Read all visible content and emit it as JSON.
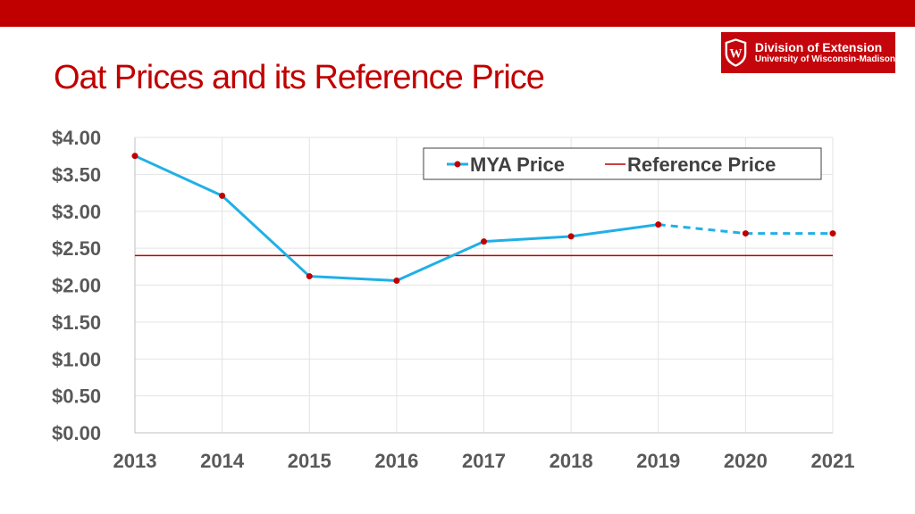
{
  "slide": {
    "title": "Oat Prices and its Reference Price",
    "accent_color": "#c00000"
  },
  "logo": {
    "line1": "Division of Extension",
    "line2": "University of Wisconsin-Madison",
    "crest_letter": "W",
    "background": "#c5050c"
  },
  "chart_data": {
    "type": "line",
    "title": "",
    "xlabel": "",
    "ylabel": "",
    "categories": [
      "2013",
      "2014",
      "2015",
      "2016",
      "2017",
      "2018",
      "2019",
      "2020",
      "2021"
    ],
    "ylim": [
      0,
      4
    ],
    "y_ticks": [
      0,
      0.5,
      1,
      1.5,
      2,
      2.5,
      3,
      3.5,
      4
    ],
    "y_tick_labels": [
      "$0.00",
      "$0.50",
      "$1.00",
      "$1.50",
      "$2.00",
      "$2.50",
      "$3.00",
      "$3.50",
      "$4.00"
    ],
    "grid": true,
    "legend_position": "top-right",
    "series": [
      {
        "name": "MYA Price",
        "values": [
          3.75,
          3.21,
          2.12,
          2.06,
          2.59,
          2.66,
          2.82,
          2.7,
          2.7
        ],
        "color": "#1fb0e6",
        "marker_color": "#c00000",
        "style": "solid through 2019, dashed for 2020-2021"
      },
      {
        "name": "Reference Price",
        "values": [
          2.4,
          2.4,
          2.4,
          2.4,
          2.4,
          2.4,
          2.4,
          2.4,
          2.4
        ],
        "color": "#c00000"
      }
    ]
  }
}
